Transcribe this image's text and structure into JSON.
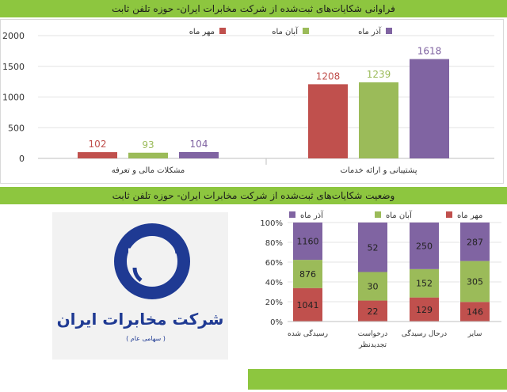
{
  "banners": {
    "top": "فراوانی شکایات‌های ثبت‌شده از شرکت  مخابرات ایران- حوزه تلفن ثابت",
    "middle": "وضعیت شکایات‌های ثبت‌شده از شرکت  مخابرات ایران- حوزه تلفن ثابت"
  },
  "logo": {
    "text_main": "شرکت مخابرات ایران",
    "text_sub": "( سهامی عام )"
  },
  "colors": {
    "mehr": "#c0504d",
    "aban": "#9bbb59",
    "azar": "#8064a2"
  },
  "chart_data": [
    {
      "type": "bar",
      "categories": [
        "مشکلات مالی و تعرفه",
        "پشتیبانی و ارائه خدمات"
      ],
      "series": [
        {
          "name": "مهر ماه",
          "values": [
            102,
            1208
          ]
        },
        {
          "name": "آبان ماه",
          "values": [
            93,
            1239
          ]
        },
        {
          "name": "آذر ماه",
          "values": [
            104,
            1618
          ]
        }
      ],
      "yticks": [
        "0",
        "500",
        "1000",
        "1500",
        "2000"
      ],
      "ylim": [
        0,
        2000
      ],
      "legend": "top-right"
    },
    {
      "type": "bar",
      "stacked": "percent",
      "categories": [
        "رسیدگی شده",
        "درخواست تجدیدنظر",
        "درحال رسیدگی",
        "سایر"
      ],
      "series": [
        {
          "name": "مهر ماه",
          "values": [
            1041,
            22,
            129,
            146
          ]
        },
        {
          "name": "آبان ماه",
          "values": [
            876,
            30,
            152,
            305
          ]
        },
        {
          "name": "آذر ماه",
          "values": [
            1160,
            52,
            250,
            287
          ]
        }
      ],
      "yticks": [
        "0%",
        "20%",
        "40%",
        "60%",
        "80%",
        "100%"
      ],
      "ylim": [
        0,
        100
      ],
      "legend": "top"
    }
  ]
}
